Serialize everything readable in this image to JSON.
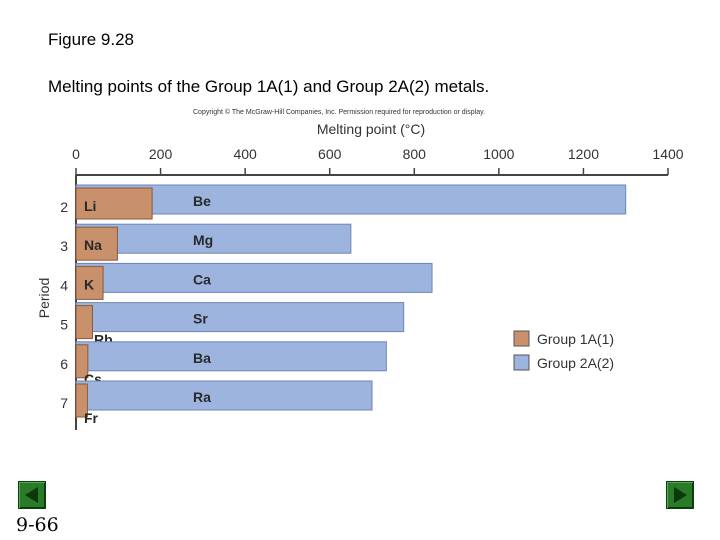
{
  "slide": {
    "figure_title": "Figure 9.28",
    "caption": "Melting points of the Group 1A(1) and Group 2A(2) metals.",
    "copyright": "Copyright © The McGraw-Hill Companies, Inc. Permission required for reproduction or display.",
    "slide_number": "9-66",
    "prev_icon": "triangle-left",
    "next_icon": "triangle-right",
    "nav_color": "#2a7a2a"
  },
  "chart_data": {
    "type": "bar",
    "orientation": "horizontal",
    "xlabel": "Melting point (°C)",
    "ylabel": "Period",
    "xlim": [
      0,
      1400
    ],
    "xticks": [
      "0",
      "200",
      "400",
      "600",
      "800",
      "1000",
      "1200",
      "1400"
    ],
    "xtick_values": [
      0,
      200,
      400,
      600,
      800,
      1000,
      1200,
      1400
    ],
    "axis_position": "top",
    "categories": [
      "2",
      "3",
      "4",
      "5",
      "6",
      "7"
    ],
    "series": [
      {
        "name": "Group 1A(1)",
        "color": "#c9906c",
        "labels": [
          "Li",
          "Na",
          "K",
          "Rb",
          "Cs",
          "Fr"
        ],
        "values": [
          180,
          98,
          64,
          39,
          28,
          27
        ]
      },
      {
        "name": "Group 2A(2)",
        "color": "#9db4df",
        "labels": [
          "Be",
          "Mg",
          "Ca",
          "Sr",
          "Ba",
          "Ra"
        ],
        "values": [
          1300,
          650,
          842,
          775,
          734,
          700
        ]
      }
    ],
    "legend_position": "right"
  }
}
